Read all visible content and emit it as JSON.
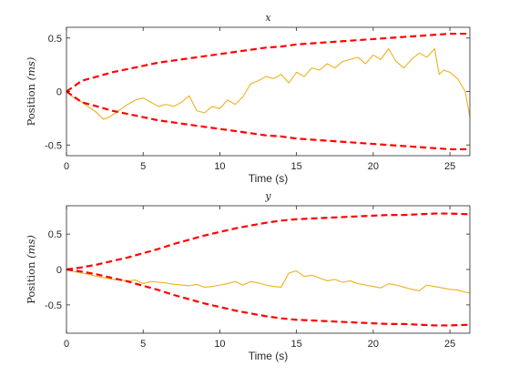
{
  "chart_data": [
    {
      "type": "line",
      "title": "x",
      "xlabel": "Time (s)",
      "ylabel": {
        "word": "Position",
        "unit": "(ms)"
      },
      "xlim": [
        0,
        26.3
      ],
      "ylim": [
        -0.6,
        0.6
      ],
      "xticks": [
        0,
        5,
        10,
        15,
        20,
        25
      ],
      "yticks": [
        0.5,
        0,
        -0.5
      ],
      "xtick_labels": [
        "0",
        "5",
        "10",
        "15",
        "20",
        "25"
      ],
      "ytick_labels": [
        "0.5",
        "0",
        "-0.5"
      ],
      "series": [
        {
          "color": "#EDB120",
          "style": "solid",
          "x": [
            0,
            0.4,
            0.8,
            1.2,
            1.6,
            2.0,
            2.4,
            2.8,
            3.2,
            3.6,
            4.0,
            4.5,
            5.0,
            5.5,
            6.0,
            6.5,
            7.0,
            7.5,
            8.0,
            8.5,
            9.0,
            9.5,
            10.0,
            10.5,
            11.0,
            11.5,
            12.0,
            12.5,
            13.0,
            13.5,
            14.0,
            14.5,
            15.0,
            15.5,
            16.0,
            16.5,
            17.0,
            17.5,
            18.0,
            18.5,
            19.0,
            19.5,
            20.0,
            20.5,
            21.0,
            21.5,
            22.0,
            22.5,
            23.0,
            23.5,
            24.0,
            24.3,
            24.6,
            25.0,
            25.5,
            26.0,
            26.3
          ],
          "y": [
            0.0,
            -0.05,
            -0.08,
            -0.12,
            -0.16,
            -0.2,
            -0.26,
            -0.24,
            -0.2,
            -0.16,
            -0.12,
            -0.08,
            -0.06,
            -0.1,
            -0.14,
            -0.12,
            -0.14,
            -0.1,
            -0.04,
            -0.18,
            -0.2,
            -0.14,
            -0.16,
            -0.08,
            -0.12,
            -0.05,
            0.07,
            0.1,
            0.14,
            0.12,
            0.16,
            0.08,
            0.18,
            0.14,
            0.22,
            0.2,
            0.26,
            0.22,
            0.28,
            0.3,
            0.32,
            0.26,
            0.34,
            0.3,
            0.4,
            0.28,
            0.22,
            0.3,
            0.36,
            0.32,
            0.4,
            0.16,
            0.2,
            0.18,
            0.12,
            0.0,
            -0.24
          ]
        },
        {
          "color": "#FF0000",
          "style": "dashed",
          "x": [
            0,
            1,
            2,
            3,
            4,
            5,
            6,
            7,
            8,
            9,
            10,
            11,
            12,
            13,
            14,
            15,
            16,
            17,
            18,
            19,
            20,
            21,
            22,
            23,
            24,
            25,
            26.3
          ],
          "y": [
            0.0,
            0.1,
            0.14,
            0.18,
            0.21,
            0.24,
            0.27,
            0.29,
            0.31,
            0.33,
            0.35,
            0.37,
            0.39,
            0.41,
            0.42,
            0.44,
            0.45,
            0.46,
            0.47,
            0.48,
            0.49,
            0.5,
            0.51,
            0.52,
            0.53,
            0.54,
            0.54
          ]
        },
        {
          "color": "#FF0000",
          "style": "dashed",
          "x": [
            0,
            1,
            2,
            3,
            4,
            5,
            6,
            7,
            8,
            9,
            10,
            11,
            12,
            13,
            14,
            15,
            16,
            17,
            18,
            19,
            20,
            21,
            22,
            23,
            24,
            25,
            26.3
          ],
          "y": [
            0.0,
            -0.1,
            -0.14,
            -0.18,
            -0.21,
            -0.24,
            -0.27,
            -0.29,
            -0.31,
            -0.33,
            -0.35,
            -0.37,
            -0.39,
            -0.41,
            -0.42,
            -0.44,
            -0.45,
            -0.46,
            -0.47,
            -0.48,
            -0.49,
            -0.5,
            -0.51,
            -0.52,
            -0.53,
            -0.54,
            -0.54
          ]
        }
      ]
    },
    {
      "type": "line",
      "title": "y",
      "xlabel": "Time (s)",
      "ylabel": {
        "word": "Position",
        "unit": "(ms)"
      },
      "xlim": [
        0,
        26.3
      ],
      "ylim": [
        -0.9,
        0.9
      ],
      "xticks": [
        0,
        5,
        10,
        15,
        20,
        25
      ],
      "yticks": [
        0.5,
        0,
        -0.5
      ],
      "xtick_labels": [
        "0",
        "5",
        "10",
        "15",
        "20",
        "25"
      ],
      "ytick_labels": [
        "0.5",
        "0",
        "-0.5"
      ],
      "series": [
        {
          "color": "#EDB120",
          "style": "solid",
          "x": [
            0,
            0.5,
            1,
            1.5,
            2,
            2.5,
            3,
            3.5,
            4,
            4.5,
            5,
            5.5,
            6,
            6.5,
            7,
            7.5,
            8,
            8.5,
            9,
            9.5,
            10,
            10.5,
            11,
            11.5,
            12,
            12.5,
            13,
            13.5,
            14,
            14.5,
            15,
            15.5,
            16,
            16.5,
            17,
            17.5,
            18,
            18.5,
            19,
            19.5,
            20,
            20.5,
            21,
            21.5,
            22,
            22.5,
            23,
            23.5,
            24,
            24.5,
            25,
            25.5,
            26,
            26.3
          ],
          "y": [
            0.0,
            -0.03,
            -0.05,
            -0.07,
            -0.1,
            -0.12,
            -0.14,
            -0.15,
            -0.16,
            -0.15,
            -0.2,
            -0.17,
            -0.18,
            -0.19,
            -0.21,
            -0.22,
            -0.23,
            -0.21,
            -0.25,
            -0.24,
            -0.22,
            -0.2,
            -0.17,
            -0.22,
            -0.17,
            -0.19,
            -0.22,
            -0.24,
            -0.25,
            -0.05,
            -0.02,
            -0.1,
            -0.08,
            -0.12,
            -0.16,
            -0.14,
            -0.18,
            -0.16,
            -0.2,
            -0.22,
            -0.24,
            -0.26,
            -0.2,
            -0.22,
            -0.25,
            -0.28,
            -0.3,
            -0.22,
            -0.24,
            -0.26,
            -0.28,
            -0.29,
            -0.32,
            -0.33
          ]
        },
        {
          "color": "#FF0000",
          "style": "dashed",
          "x": [
            0,
            1,
            2,
            3,
            4,
            5,
            6,
            7,
            8,
            9,
            10,
            11,
            12,
            13,
            14,
            15,
            16,
            17,
            18,
            19,
            20,
            21,
            22,
            23,
            24,
            25,
            26.3
          ],
          "y": [
            0.0,
            0.03,
            0.07,
            0.12,
            0.17,
            0.23,
            0.29,
            0.36,
            0.42,
            0.48,
            0.53,
            0.58,
            0.62,
            0.66,
            0.69,
            0.71,
            0.72,
            0.73,
            0.74,
            0.75,
            0.76,
            0.77,
            0.77,
            0.78,
            0.79,
            0.79,
            0.78
          ]
        },
        {
          "color": "#FF0000",
          "style": "dashed",
          "x": [
            0,
            1,
            2,
            3,
            4,
            5,
            6,
            7,
            8,
            9,
            10,
            11,
            12,
            13,
            14,
            15,
            16,
            17,
            18,
            19,
            20,
            21,
            22,
            23,
            24,
            25,
            26.3
          ],
          "y": [
            0.0,
            -0.03,
            -0.07,
            -0.12,
            -0.17,
            -0.23,
            -0.29,
            -0.36,
            -0.42,
            -0.48,
            -0.53,
            -0.58,
            -0.62,
            -0.66,
            -0.69,
            -0.71,
            -0.72,
            -0.73,
            -0.74,
            -0.75,
            -0.76,
            -0.77,
            -0.77,
            -0.78,
            -0.79,
            -0.79,
            -0.78
          ]
        }
      ]
    }
  ]
}
